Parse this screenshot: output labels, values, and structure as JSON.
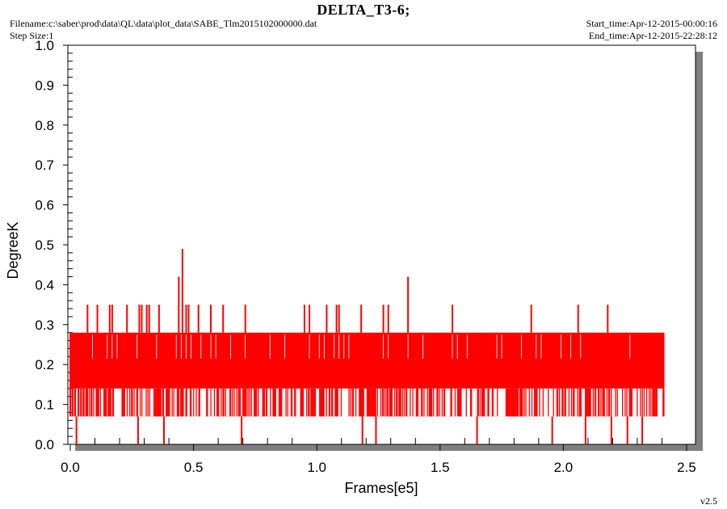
{
  "header": {
    "title": "DELTA_T3-6;",
    "filename": "Filename:c:\\saber\\prod\\data\\QL\\data\\plot_data\\SABE_Tlm2015102000000.dat",
    "step_size": "Step Size:1",
    "start_time": "Start_time:Apr-12-2015-00:00:16",
    "end_time": "End_time:Apr-12-2015-22:28:12"
  },
  "footer": {
    "version": "v2.5"
  },
  "colors": {
    "series": "#ff0000",
    "plot_background": "#ffffff",
    "shadow": "#7f7f7f"
  },
  "chart_data": {
    "type": "line",
    "title": "DELTA_T3-6;",
    "xlabel": "Frames[e5]",
    "ylabel": "DegreeK",
    "xlim": [
      0.0,
      2.5
    ],
    "ylim": [
      0.0,
      1.0
    ],
    "x_ticks": [
      "0.0",
      "0.5",
      "1.0",
      "1.5",
      "2.0",
      "2.5"
    ],
    "y_ticks": [
      "0.0",
      "0.1",
      "0.2",
      "0.3",
      "0.4",
      "0.5",
      "0.6",
      "0.7",
      "0.8",
      "0.9",
      "1.0"
    ],
    "grid": false,
    "x_data_range": [
      0.0,
      2.41
    ],
    "series": [
      {
        "color": "#ff0000",
        "band": {
          "lower": 0.14,
          "upper": 0.28
        },
        "dense_levels": [
          0.07,
          0.14,
          0.21,
          0.28
        ],
        "spikes": [
          {
            "x": 0.07,
            "y": 0.35
          },
          {
            "x": 0.11,
            "y": 0.35
          },
          {
            "x": 0.16,
            "y": 0.35
          },
          {
            "x": 0.17,
            "y": 0.35
          },
          {
            "x": 0.23,
            "y": 0.35
          },
          {
            "x": 0.28,
            "y": 0.35
          },
          {
            "x": 0.29,
            "y": 0.35
          },
          {
            "x": 0.31,
            "y": 0.35
          },
          {
            "x": 0.32,
            "y": 0.35
          },
          {
            "x": 0.36,
            "y": 0.35
          },
          {
            "x": 0.44,
            "y": 0.42
          },
          {
            "x": 0.455,
            "y": 0.49
          },
          {
            "x": 0.47,
            "y": 0.35
          },
          {
            "x": 0.48,
            "y": 0.35
          },
          {
            "x": 0.52,
            "y": 0.35
          },
          {
            "x": 0.57,
            "y": 0.35
          },
          {
            "x": 0.62,
            "y": 0.35
          },
          {
            "x": 0.71,
            "y": 0.35
          },
          {
            "x": 0.95,
            "y": 0.35
          },
          {
            "x": 0.97,
            "y": 0.35
          },
          {
            "x": 1.04,
            "y": 0.35
          },
          {
            "x": 1.08,
            "y": 0.35
          },
          {
            "x": 1.09,
            "y": 0.35
          },
          {
            "x": 1.18,
            "y": 0.35
          },
          {
            "x": 1.27,
            "y": 0.35
          },
          {
            "x": 1.29,
            "y": 0.35
          },
          {
            "x": 1.37,
            "y": 0.42
          },
          {
            "x": 1.55,
            "y": 0.35
          },
          {
            "x": 1.87,
            "y": 0.35
          },
          {
            "x": 2.06,
            "y": 0.35
          },
          {
            "x": 2.18,
            "y": 0.35
          }
        ],
        "dips": [
          {
            "x": 0.015,
            "y": 0.07
          },
          {
            "x": 0.025,
            "y": 0.0
          },
          {
            "x": 0.275,
            "y": 0.0
          },
          {
            "x": 0.38,
            "y": 0.0
          },
          {
            "x": 0.695,
            "y": 0.0
          },
          {
            "x": 1.185,
            "y": 0.0
          },
          {
            "x": 1.24,
            "y": 0.0
          },
          {
            "x": 1.65,
            "y": 0.0
          },
          {
            "x": 1.955,
            "y": 0.0
          },
          {
            "x": 2.09,
            "y": 0.0
          },
          {
            "x": 2.195,
            "y": 0.0
          },
          {
            "x": 2.26,
            "y": 0.0
          },
          {
            "x": 2.32,
            "y": 0.0
          }
        ]
      }
    ]
  }
}
